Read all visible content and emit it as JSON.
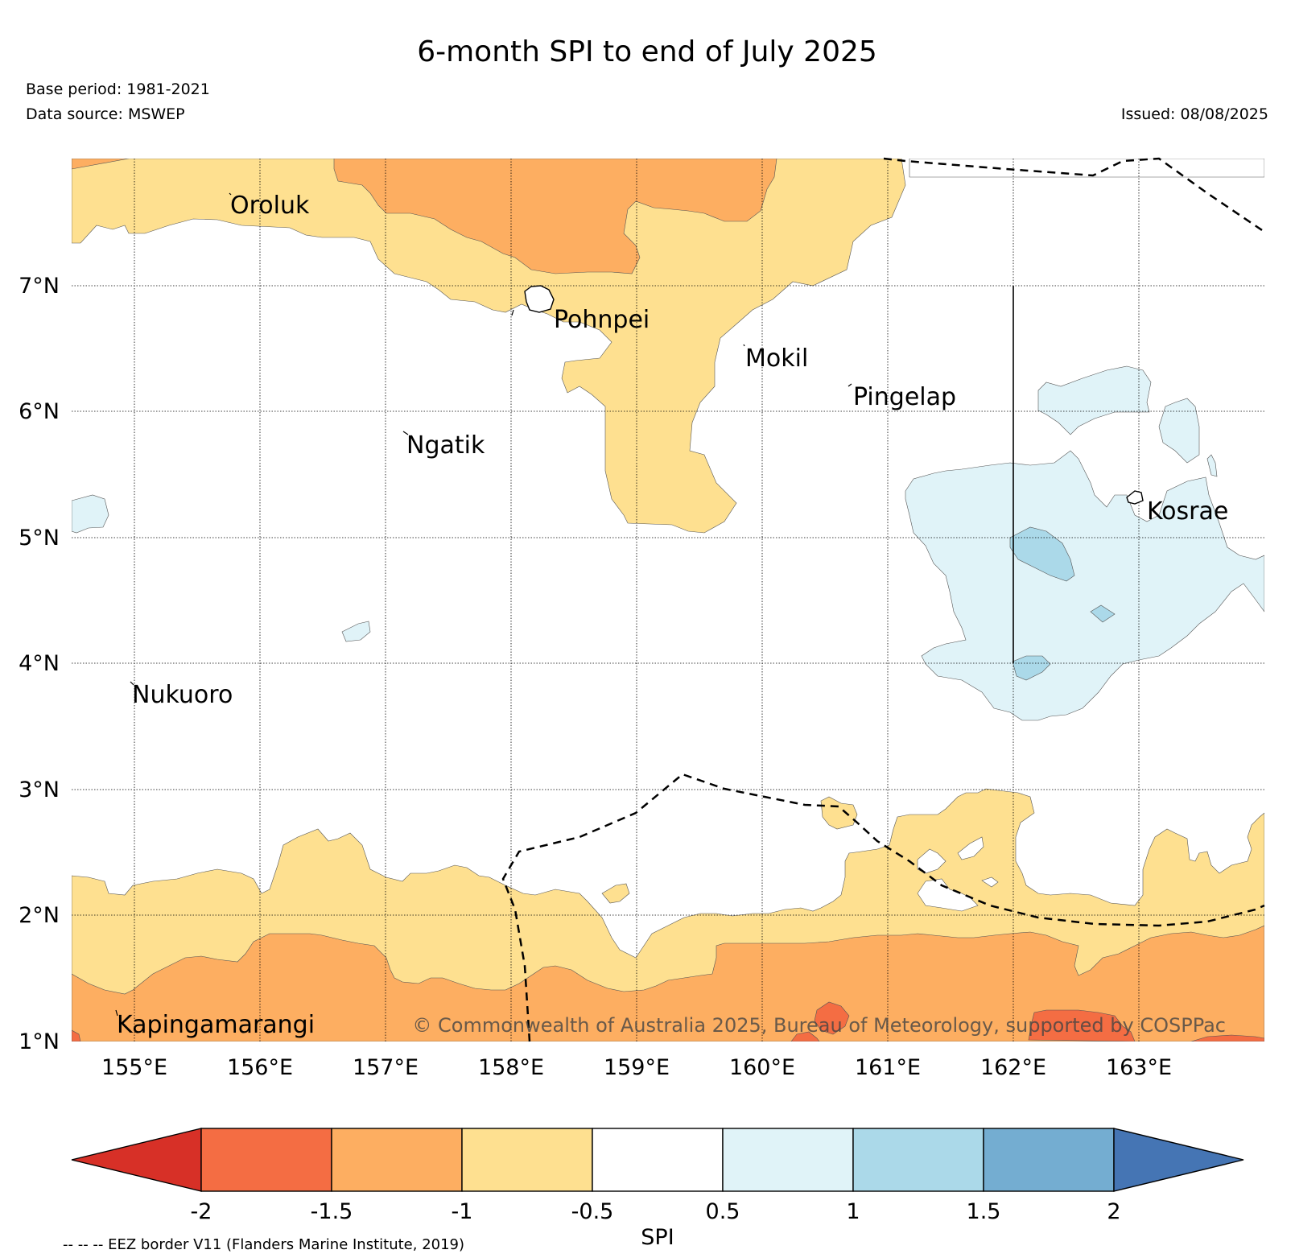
{
  "title": "6-month SPI to end of July 2025",
  "base_period": "Base period: 1981-2021",
  "data_source": "Data source: MSWEP",
  "issued": "Issued: 08/08/2025",
  "copyright": "© Commonwealth of Australia 2025, Bureau of Meteorology, supported by COSPPac",
  "eez_note": "-- -- -- EEZ border V11 (Flanders Marine Institute, 2019)",
  "colorbar": {
    "label": "SPI",
    "ticks": [
      "-2",
      "-1.5",
      "-1",
      "-0.5",
      "0.5",
      "1",
      "1.5",
      "2"
    ],
    "colors": {
      "below_-2": "#d73027",
      "-2_-1.5": "#f46d43",
      "-1.5_-1": "#fdae61",
      "-1_-0.5": "#fee090",
      "-0.5_0.5": "#ffffff",
      "0.5_1": "#e0f3f8",
      "1_1.5": "#abd9e9",
      "1.5_2": "#74add1",
      "above_2": "#4575b4"
    }
  },
  "map": {
    "lat_labels": [
      "7°N",
      "6°N",
      "5°N",
      "4°N",
      "3°N",
      "2°N",
      "1°N"
    ],
    "lon_labels": [
      "155°E",
      "156°E",
      "157°E",
      "158°E",
      "159°E",
      "160°E",
      "161°E",
      "162°E",
      "163°E"
    ],
    "places": [
      "Oroluk",
      "Pohnpei",
      "Mokil",
      "Pingelap",
      "Ngatik",
      "Kosrae",
      "Nukuoro",
      "Kapingamarangi"
    ]
  }
}
